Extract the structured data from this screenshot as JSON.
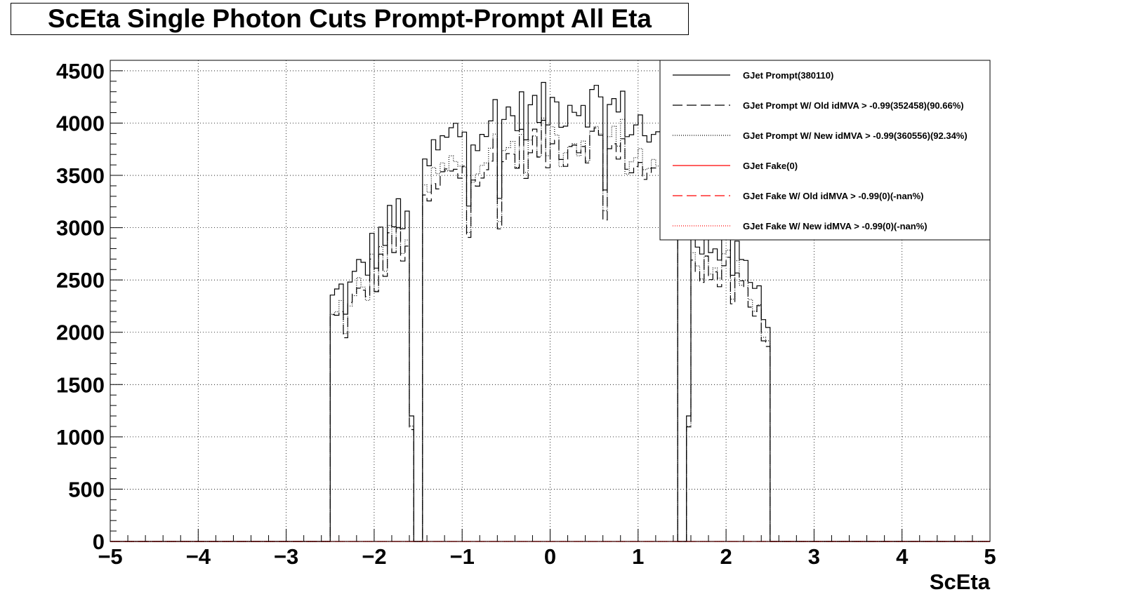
{
  "chart_data": {
    "type": "histogram",
    "title": "ScEta Single Photon Cuts Prompt-Prompt All Eta",
    "xlabel": "ScEta",
    "ylabel": "",
    "xlim": [
      -5,
      5
    ],
    "ylim": [
      0,
      4600
    ],
    "grid": true,
    "legend_position": "top-right",
    "x_ticks": [
      {
        "v": -5,
        "label": "−5"
      },
      {
        "v": -4,
        "label": "−4"
      },
      {
        "v": -3,
        "label": "−3"
      },
      {
        "v": -2,
        "label": "−2"
      },
      {
        "v": -1,
        "label": "−1"
      },
      {
        "v": 0,
        "label": "0"
      },
      {
        "v": 1,
        "label": "1"
      },
      {
        "v": 2,
        "label": "2"
      },
      {
        "v": 3,
        "label": "3"
      },
      {
        "v": 4,
        "label": "4"
      },
      {
        "v": 5,
        "label": "5"
      }
    ],
    "y_ticks": [
      {
        "v": 0,
        "label": "0"
      },
      {
        "v": 500,
        "label": "500"
      },
      {
        "v": 1000,
        "label": "1000"
      },
      {
        "v": 1500,
        "label": "1500"
      },
      {
        "v": 2000,
        "label": "2000"
      },
      {
        "v": 2500,
        "label": "2500"
      },
      {
        "v": 3000,
        "label": "3000"
      },
      {
        "v": 3500,
        "label": "3500"
      },
      {
        "v": 4000,
        "label": "4000"
      },
      {
        "v": 4500,
        "label": "4500"
      }
    ],
    "bin_edges_approx": [
      -2.5,
      2.5
    ],
    "anchors": [
      [
        -2.5,
        2240
      ],
      [
        -2.4,
        2380
      ],
      [
        -2.3,
        2330
      ],
      [
        -2.2,
        2500
      ],
      [
        -2.1,
        2670
      ],
      [
        -2.0,
        2780
      ],
      [
        -1.9,
        2920
      ],
      [
        -1.8,
        3020
      ],
      [
        -1.7,
        3140
      ],
      [
        -1.6,
        3250
      ],
      [
        -1.566,
        1200
      ],
      [
        -1.5,
        3300
      ],
      [
        -1.4,
        3600
      ],
      [
        -1.2,
        3800
      ],
      [
        -1.0,
        3950
      ],
      [
        -0.8,
        4000
      ],
      [
        -0.6,
        4050
      ],
      [
        -0.4,
        4080
      ],
      [
        -0.2,
        4100
      ],
      [
        0.0,
        4150
      ],
      [
        0.2,
        4190
      ],
      [
        0.4,
        4220
      ],
      [
        0.6,
        4200
      ],
      [
        0.8,
        4100
      ],
      [
        1.0,
        4000
      ],
      [
        1.2,
        3850
      ],
      [
        1.4,
        3550
      ],
      [
        1.566,
        1100
      ],
      [
        1.6,
        3100
      ],
      [
        1.8,
        2850
      ],
      [
        2.0,
        2750
      ],
      [
        2.2,
        2550
      ],
      [
        2.4,
        2320
      ],
      [
        2.5,
        2280
      ]
    ],
    "series": [
      {
        "name": "GJet Prompt(380110)",
        "color": "#000000",
        "style": "solid",
        "scale": 1.0
      },
      {
        "name": "GJet Prompt W/ Old idMVA > -0.99(352458)(90.66%)",
        "color": "#000000",
        "style": "dashed",
        "scale": 0.9066
      },
      {
        "name": "GJet Prompt W/ New idMVA > -0.99(360556)(92.34%)",
        "color": "#000000",
        "style": "dotted",
        "scale": 0.9234
      },
      {
        "name": "GJet Fake(0)",
        "color": "#ff0000",
        "style": "solid",
        "scale": 0
      },
      {
        "name": "GJet Fake W/ Old idMVA > -0.99(0)(-nan%)",
        "color": "#ff0000",
        "style": "dashed",
        "scale": 0
      },
      {
        "name": "GJet Fake W/ New idMVA > -0.99(0)(-nan%)",
        "color": "#ff0000",
        "style": "dotted",
        "scale": 0
      }
    ]
  }
}
